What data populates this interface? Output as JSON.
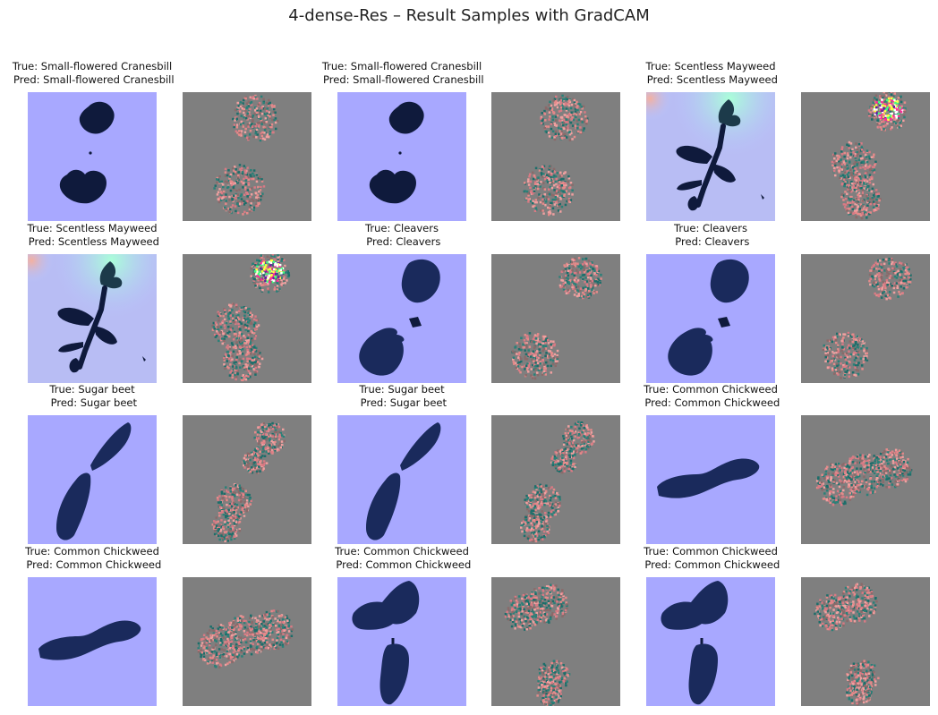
{
  "figure": {
    "title": "4-dense-Res – Result Samples with GradCAM",
    "samples": [
      {
        "true_label": "True: Small-flowered Cranesbill",
        "pred_label": "Pred: Small-flowered Cranesbill",
        "plant": "cranes"
      },
      {
        "true_label": "True: Small-flowered Cranesbill",
        "pred_label": "Pred: Small-flowered Cranesbill",
        "plant": "cranes"
      },
      {
        "true_label": "True: Scentless Mayweed",
        "pred_label": "Pred: Scentless Mayweed",
        "plant": "mayweed"
      },
      {
        "true_label": "True: Scentless Mayweed",
        "pred_label": "Pred: Scentless Mayweed",
        "plant": "mayweed"
      },
      {
        "true_label": "True: Cleavers",
        "pred_label": "Pred: Cleavers",
        "plant": "cleavers"
      },
      {
        "true_label": "True: Cleavers",
        "pred_label": "Pred: Cleavers",
        "plant": "cleavers"
      },
      {
        "true_label": "True: Sugar beet",
        "pred_label": "Pred: Sugar beet",
        "plant": "sugarbeet"
      },
      {
        "true_label": "True: Sugar beet",
        "pred_label": "Pred: Sugar beet",
        "plant": "sugarbeet"
      },
      {
        "true_label": "True: Common Chickweed",
        "pred_label": "Pred: Common Chickweed",
        "plant": "chick_a"
      },
      {
        "true_label": "True: Common Chickweed",
        "pred_label": "Pred: Common Chickweed",
        "plant": "chick_a"
      },
      {
        "true_label": "True: Common Chickweed",
        "pred_label": "Pred: Common Chickweed",
        "plant": "chick_b"
      },
      {
        "true_label": "True: Common Chickweed",
        "pred_label": "Pred: Common Chickweed",
        "plant": "chick_b"
      }
    ],
    "colors": {
      "background": "#a8a8ff",
      "leaf": "#0f1a3c",
      "gradcam_gray": "#7f7f7f"
    }
  }
}
